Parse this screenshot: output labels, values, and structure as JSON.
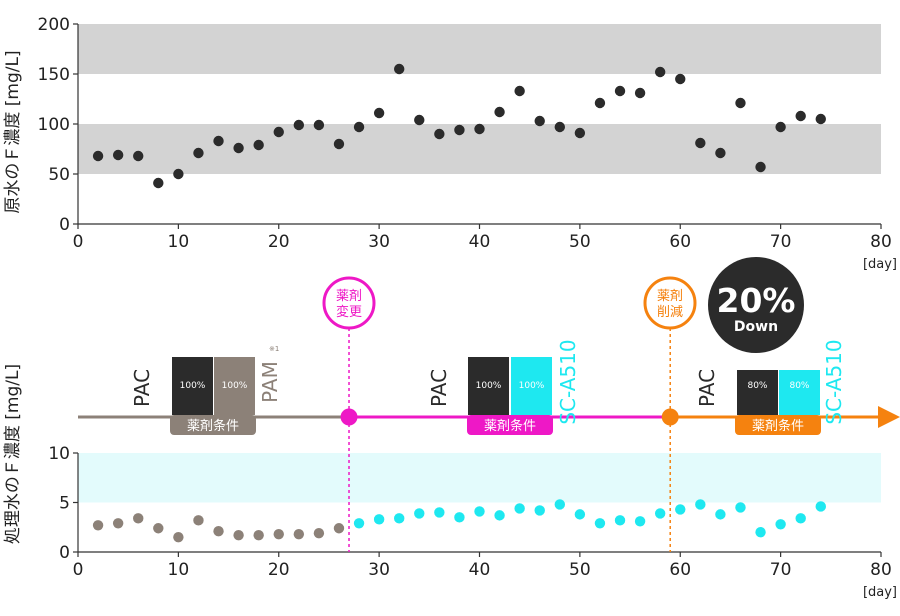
{
  "chart_data": [
    {
      "type": "scatter",
      "ylabel": "原水のＦ濃度 [mg/L]",
      "xunit": "[day]",
      "xlim": [
        0,
        80
      ],
      "ylim": [
        0,
        200
      ],
      "xticks": [
        0,
        10,
        20,
        30,
        40,
        50,
        60,
        70,
        80
      ],
      "yticks": [
        0,
        50,
        100,
        150,
        200
      ],
      "bands": [
        [
          50,
          100
        ],
        [
          150,
          200
        ]
      ],
      "band_color": "#d3d3d3",
      "series": [
        {
          "color": "#2b2b2b",
          "x": [
            2,
            4,
            6,
            8,
            10,
            12,
            14,
            16,
            18,
            20,
            22,
            24,
            26,
            28,
            30,
            32,
            34,
            36,
            38,
            40,
            42,
            44,
            46,
            48,
            50,
            52,
            54,
            56,
            58,
            60,
            62,
            64,
            66,
            68,
            70,
            72,
            74
          ],
          "y": [
            68,
            69,
            68,
            41,
            50,
            71,
            83,
            76,
            79,
            92,
            99,
            99,
            80,
            97,
            111,
            155,
            104,
            90,
            94,
            95,
            112,
            133,
            103,
            97,
            91,
            121,
            133,
            131,
            152,
            145,
            81,
            71,
            121,
            57,
            97,
            108,
            105
          ]
        }
      ]
    },
    {
      "type": "scatter",
      "ylabel": "処理水のＦ濃度 [mg/L]",
      "xunit": "[day]",
      "xlim": [
        0,
        80
      ],
      "ylim": [
        0,
        10
      ],
      "xticks": [
        0,
        10,
        20,
        30,
        40,
        50,
        60,
        70,
        80
      ],
      "yticks": [
        0,
        5,
        10
      ],
      "bands": [
        [
          5,
          10
        ]
      ],
      "band_color": "#e3fbfc",
      "change_days": [
        27,
        59
      ],
      "series": [
        {
          "color": "#8c8178",
          "x": [
            2,
            4,
            6,
            8,
            10,
            12,
            14,
            16,
            18,
            20,
            22,
            24,
            26
          ],
          "y": [
            2.7,
            2.9,
            3.4,
            2.4,
            1.5,
            3.2,
            2.1,
            1.7,
            1.7,
            1.8,
            1.8,
            1.9,
            2.4
          ]
        },
        {
          "color": "#1ee8f0",
          "x": [
            28,
            30,
            32,
            34,
            36,
            38,
            40,
            42,
            44,
            46,
            48,
            50,
            52,
            54,
            56,
            58,
            60,
            62,
            64,
            66,
            68,
            70,
            72,
            74
          ],
          "y": [
            2.9,
            3.3,
            3.4,
            3.9,
            4.0,
            3.5,
            4.1,
            3.7,
            4.4,
            4.2,
            4.8,
            3.8,
            2.9,
            3.2,
            3.1,
            3.9,
            4.3,
            4.8,
            3.8,
            4.5,
            2.0,
            2.8,
            3.4,
            4.6
          ]
        }
      ]
    }
  ],
  "timeline": {
    "colors": {
      "before": "#8c8178",
      "middle": "#ee18c6",
      "after": "#f5820f"
    },
    "markers": [
      {
        "day": 27,
        "label_lines": [
          "薬剤",
          "変更"
        ],
        "color": "#ee18c6"
      },
      {
        "day": 59,
        "label_lines": [
          "薬剤",
          "削減"
        ],
        "color": "#f5820f"
      }
    ],
    "badge": {
      "value": "20%",
      "sub": "Down",
      "color": "#2b2b2b"
    },
    "phases": [
      {
        "left_label": "PAC",
        "left_label_color": "#2b2b2b",
        "boxes": [
          {
            "text": "100%",
            "fill": "#2b2b2b",
            "text_color": "#ffffff"
          },
          {
            "text": "100%",
            "fill": "#8c8178",
            "text_color": "#ffffff"
          }
        ],
        "right_label": "PAM",
        "right_note": "※1",
        "right_label_color": "#8c8178",
        "tag": "薬剤条件",
        "tag_color": "#8c8178"
      },
      {
        "left_label": "PAC",
        "left_label_color": "#2b2b2b",
        "boxes": [
          {
            "text": "100%",
            "fill": "#2b2b2b",
            "text_color": "#ffffff"
          },
          {
            "text": "100%",
            "fill": "#1ee8f0",
            "text_color": "#ffffff"
          }
        ],
        "right_label": "SC-A510",
        "right_note": "",
        "right_label_color": "#1ee8f0",
        "tag": "薬剤条件",
        "tag_color": "#ee18c6"
      },
      {
        "left_label": "PAC",
        "left_label_color": "#2b2b2b",
        "boxes": [
          {
            "text": "80%",
            "fill": "#2b2b2b",
            "text_color": "#ffffff"
          },
          {
            "text": "80%",
            "fill": "#1ee8f0",
            "text_color": "#ffffff"
          }
        ],
        "right_label": "SC-A510",
        "right_note": "",
        "right_label_color": "#1ee8f0",
        "tag": "薬剤条件",
        "tag_color": "#f5820f"
      }
    ]
  }
}
